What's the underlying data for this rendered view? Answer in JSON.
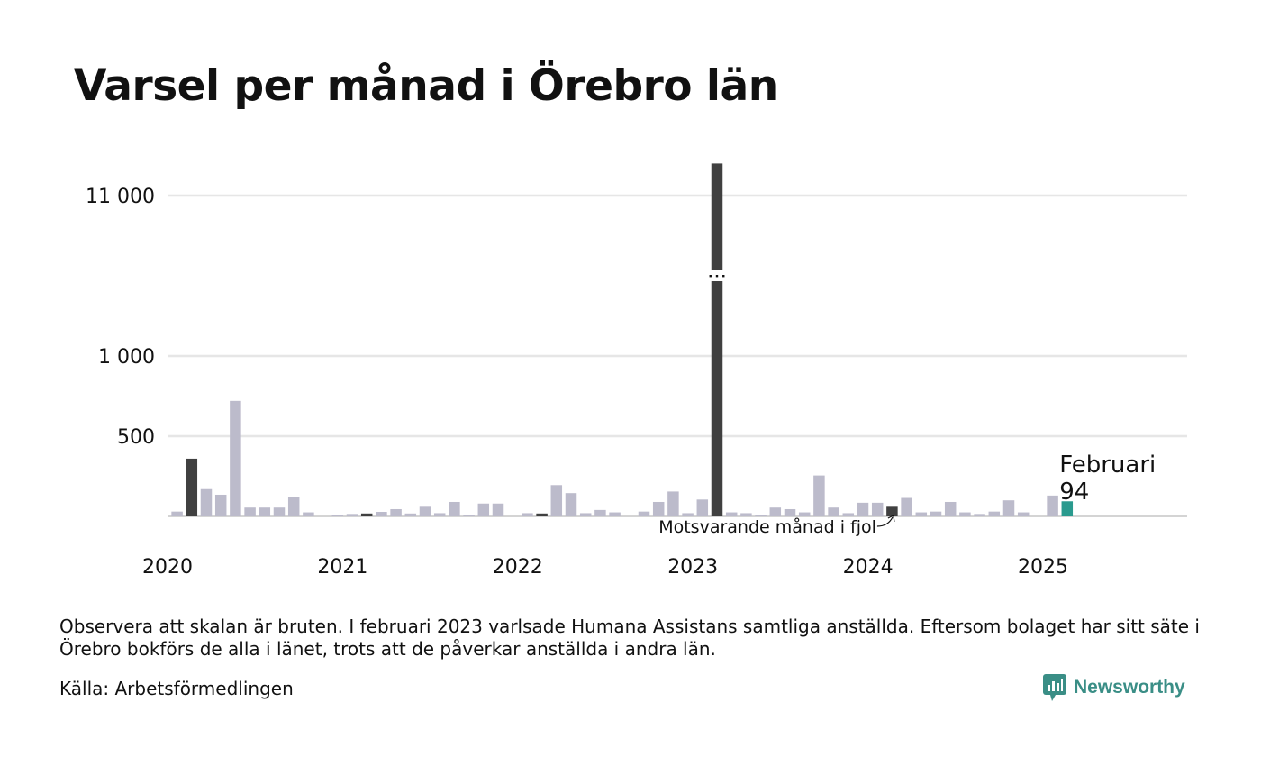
{
  "title": "Varsel per månad i Örebro län",
  "note": "Observera att skalan är bruten. I februari 2023 varlsade Humana Assistans samtliga anställda. Eftersom bolaget har sitt säte i Örebro bokförs de alla i länet, trots att de påverkar anställda i andra län.",
  "source": "Källa: Arbetsförmedlingen",
  "brand": "Newsworthy",
  "colors": {
    "regular": "#bcbbcb",
    "february": "#404040",
    "current": "#2a9a8e",
    "grid": "#e6e6e6",
    "axis": "#d4d4d4"
  },
  "chart_data": {
    "type": "bar",
    "title": "Varsel per månad i Örebro län",
    "scale": "broken",
    "x_start": "2020-01",
    "x_end": "2025-12",
    "x_tick_labels": [
      "2020",
      "2021",
      "2022",
      "2023",
      "2024",
      "2025"
    ],
    "y_tick_labels": [
      "500",
      "1 000",
      "11 000"
    ],
    "y_ticks": [
      500,
      1000,
      11000
    ],
    "y_break": "1 000 – 11 000",
    "grid": true,
    "series": [
      {
        "months": [
          "2020-01",
          "2020-02",
          "2020-03",
          "2020-04",
          "2020-05",
          "2020-06",
          "2020-07",
          "2020-08",
          "2020-09",
          "2020-10",
          "2020-11",
          "2020-12",
          "2021-01",
          "2021-02",
          "2021-03",
          "2021-04",
          "2021-05",
          "2021-06",
          "2021-07",
          "2021-08",
          "2021-09",
          "2021-10",
          "2021-11",
          "2021-12",
          "2022-01",
          "2022-02",
          "2022-03",
          "2022-04",
          "2022-05",
          "2022-06",
          "2022-07",
          "2022-08",
          "2022-09",
          "2022-10",
          "2022-11",
          "2022-12",
          "2023-01",
          "2023-02",
          "2023-03",
          "2023-04",
          "2023-05",
          "2023-06",
          "2023-07",
          "2023-08",
          "2023-09",
          "2023-10",
          "2023-11",
          "2023-12",
          "2024-01",
          "2024-02",
          "2024-03",
          "2024-04",
          "2024-05",
          "2024-06",
          "2024-07",
          "2024-08",
          "2024-09",
          "2024-10",
          "2024-11",
          "2024-12",
          "2025-01",
          "2025-02"
        ],
        "values": [
          30,
          360,
          170,
          135,
          720,
          55,
          55,
          55,
          120,
          25,
          0,
          8,
          15,
          18,
          28,
          45,
          18,
          60,
          20,
          90,
          10,
          80,
          80,
          0,
          20,
          18,
          195,
          145,
          20,
          40,
          25,
          0,
          30,
          90,
          155,
          20,
          105,
          13000,
          25,
          20,
          8,
          55,
          45,
          25,
          255,
          55,
          20,
          85,
          85,
          60,
          115,
          25,
          30,
          90,
          25,
          15,
          30,
          100,
          25,
          0,
          130,
          94
        ]
      }
    ],
    "highlight": {
      "month": "2025-02",
      "label": "Februari",
      "value_label": "94"
    },
    "annotation": "Motsvarande månad i fjol"
  }
}
